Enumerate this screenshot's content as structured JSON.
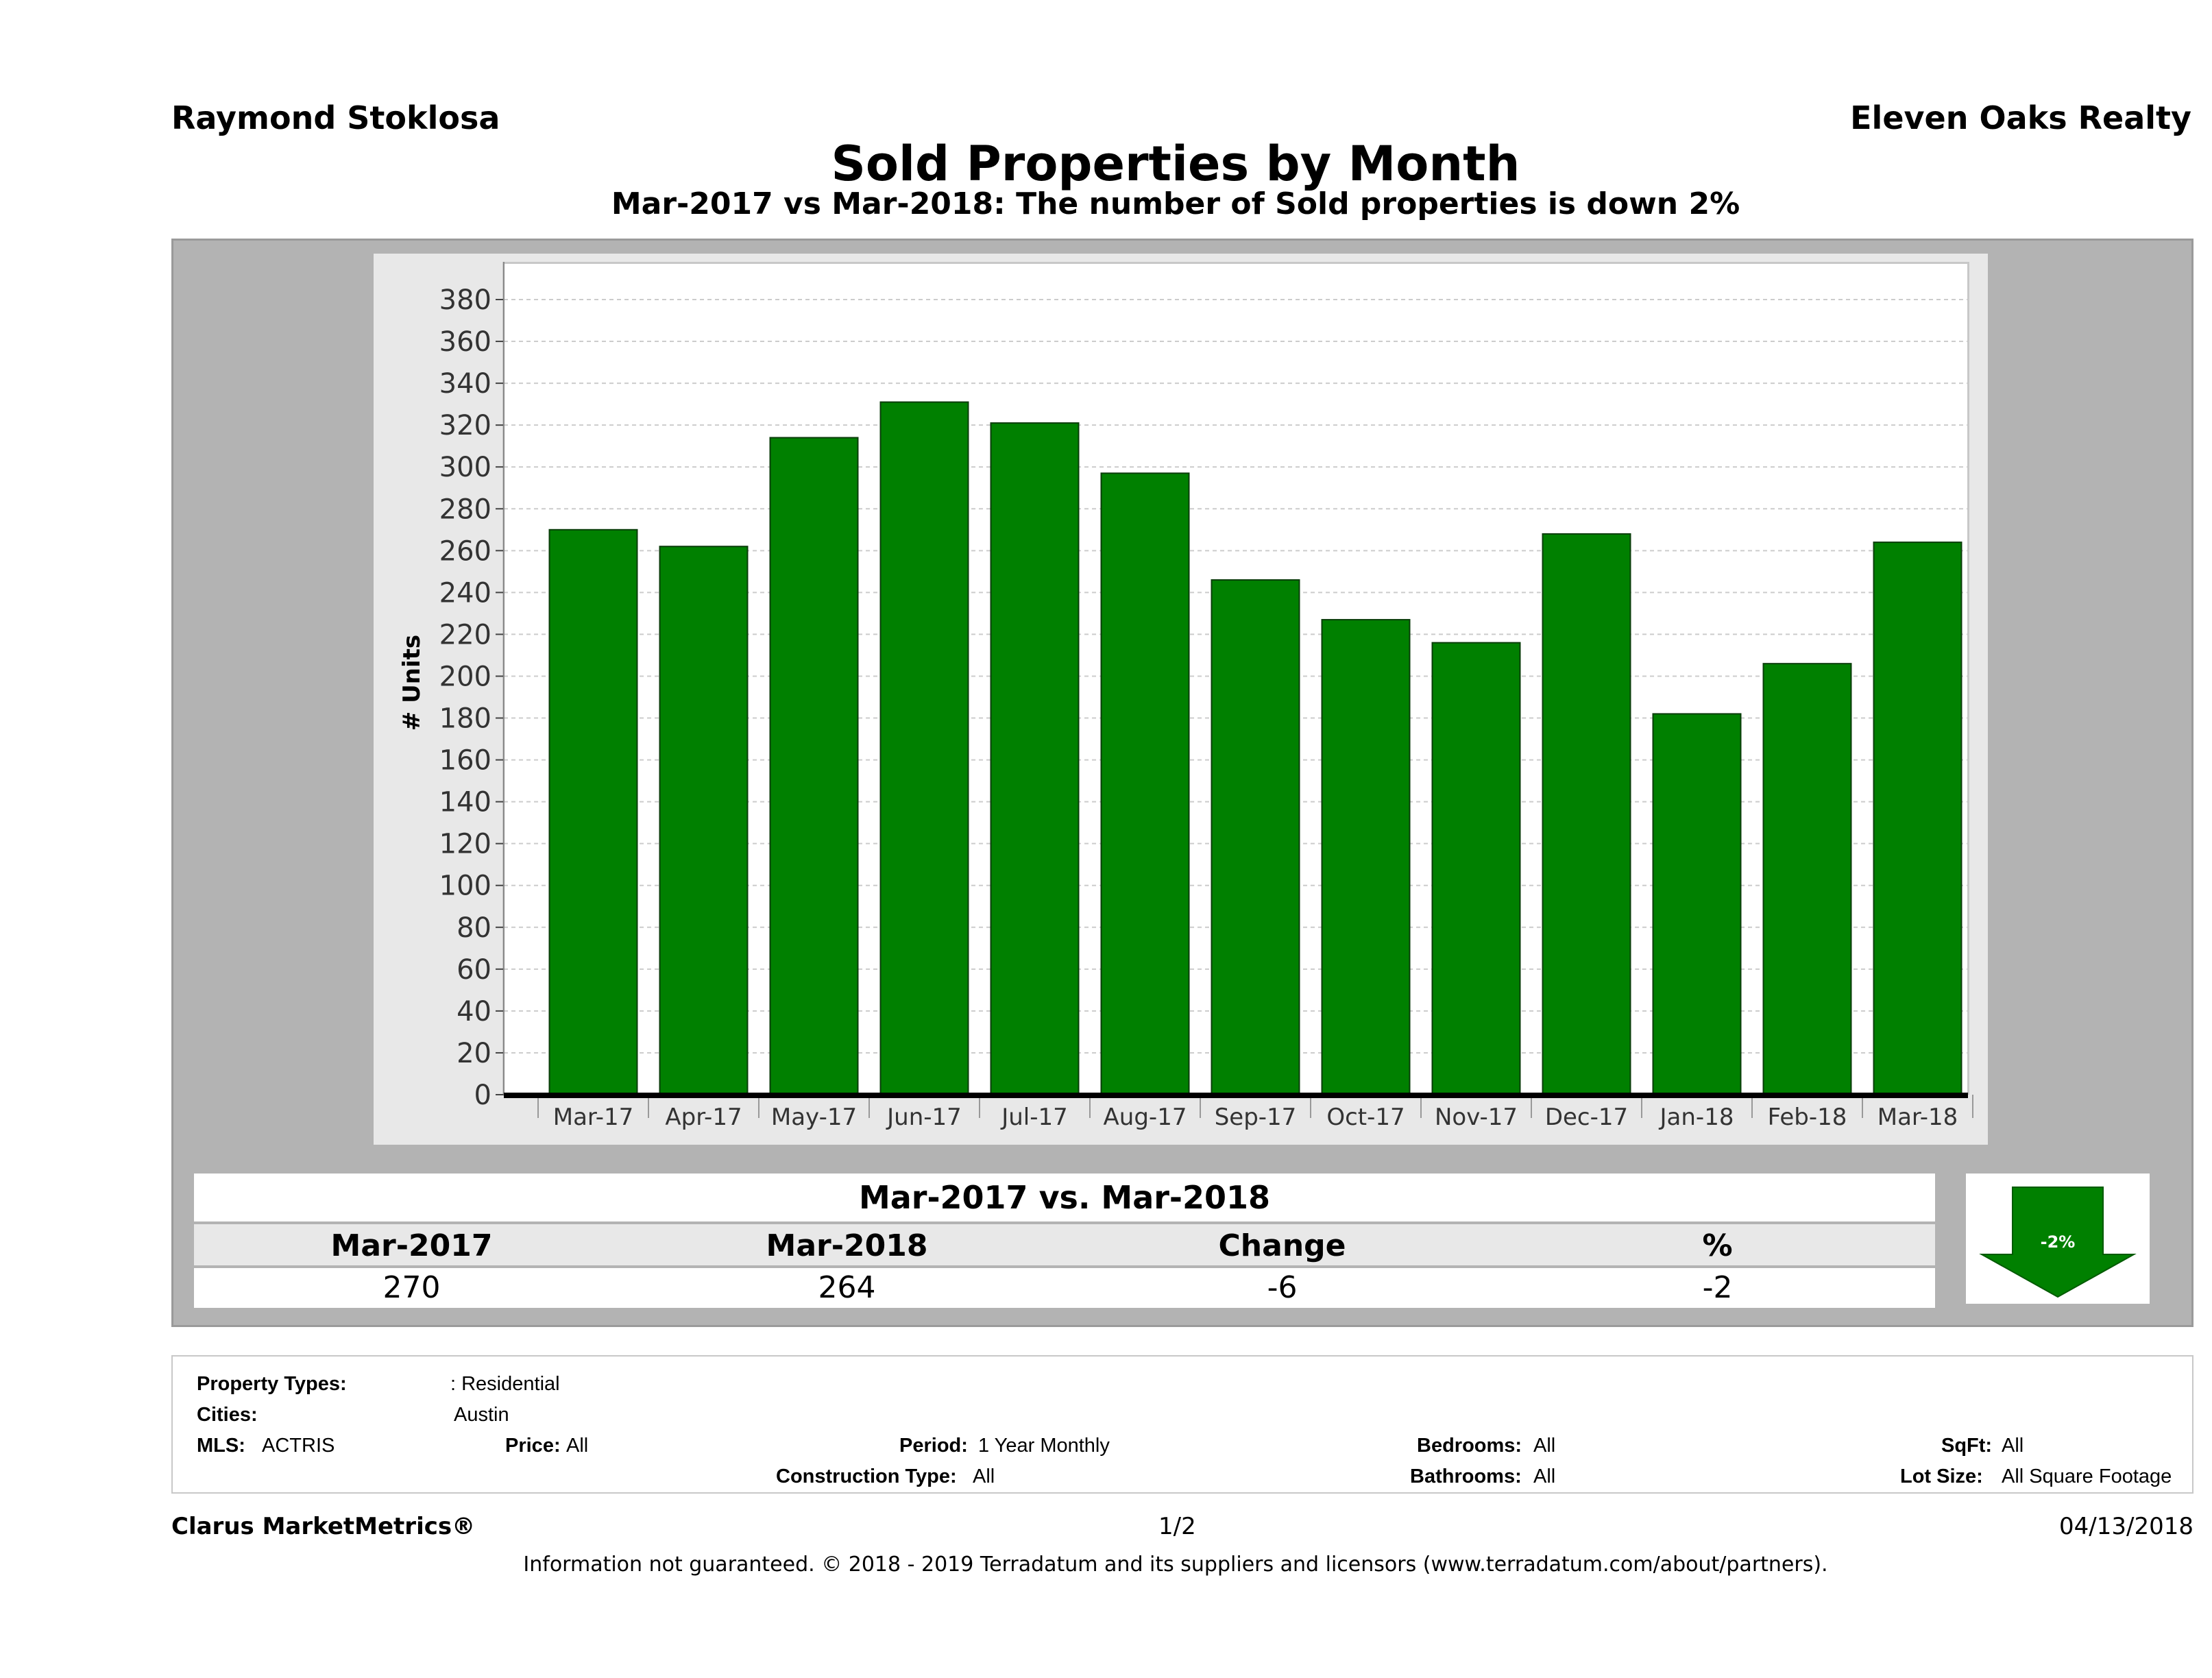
{
  "header": {
    "agent_name": "Raymond Stoklosa",
    "brokerage": "Eleven Oaks Realty",
    "title": "Sold Properties by Month",
    "subtitle": "Mar-2017 vs Mar-2018: The number of Sold  properties is down 2%"
  },
  "chart_data": {
    "type": "bar",
    "title": "Sold Properties by Month",
    "ylabel": "# Units",
    "xlabel": "",
    "categories": [
      "Mar-17",
      "Apr-17",
      "May-17",
      "Jun-17",
      "Jul-17",
      "Aug-17",
      "Sep-17",
      "Oct-17",
      "Nov-17",
      "Dec-17",
      "Jan-18",
      "Feb-18",
      "Mar-18"
    ],
    "values": [
      270,
      262,
      314,
      331,
      321,
      297,
      246,
      227,
      216,
      268,
      182,
      206,
      264
    ],
    "ylim": [
      0,
      390
    ],
    "yticks": [
      0,
      20,
      40,
      60,
      80,
      100,
      120,
      140,
      160,
      180,
      200,
      220,
      240,
      260,
      280,
      300,
      320,
      340,
      360,
      380
    ],
    "bar_color": "#008000",
    "grid": true
  },
  "comparison": {
    "title": "Mar-2017 vs. Mar-2018",
    "headers": [
      "Mar-2017",
      "Mar-2018",
      "Change",
      "%"
    ],
    "values": [
      "270",
      "264",
      "-6",
      "-2"
    ],
    "arrow_label": "-2%",
    "arrow_icon": "down-arrow-icon",
    "arrow_color": "#008000"
  },
  "criteria": {
    "property_types_label": "Property Types:",
    "property_types_value": ": Residential",
    "cities_label": "Cities:",
    "cities_value": "Austin",
    "mls_label": "MLS:",
    "mls_value": "ACTRIS",
    "price_label": "Price:",
    "price_value": "All",
    "period_label": "Period:",
    "period_value": "1 Year Monthly",
    "bedrooms_label": "Bedrooms:",
    "bedrooms_value": "All",
    "sqft_label": "SqFt:",
    "sqft_value": "All",
    "construction_label": "Construction Type:",
    "construction_value": "All",
    "bathrooms_label": "Bathrooms:",
    "bathrooms_value": "All",
    "lot_size_label": "Lot Size:",
    "lot_size_value": "All Square Footage"
  },
  "footer": {
    "brand": "Clarus MarketMetrics®",
    "page": "1/2",
    "date": "04/13/2018",
    "disclaimer": "Information not guaranteed. © 2018 - 2019 Terradatum and its suppliers and licensors (www.terradatum.com/about/partners)."
  }
}
